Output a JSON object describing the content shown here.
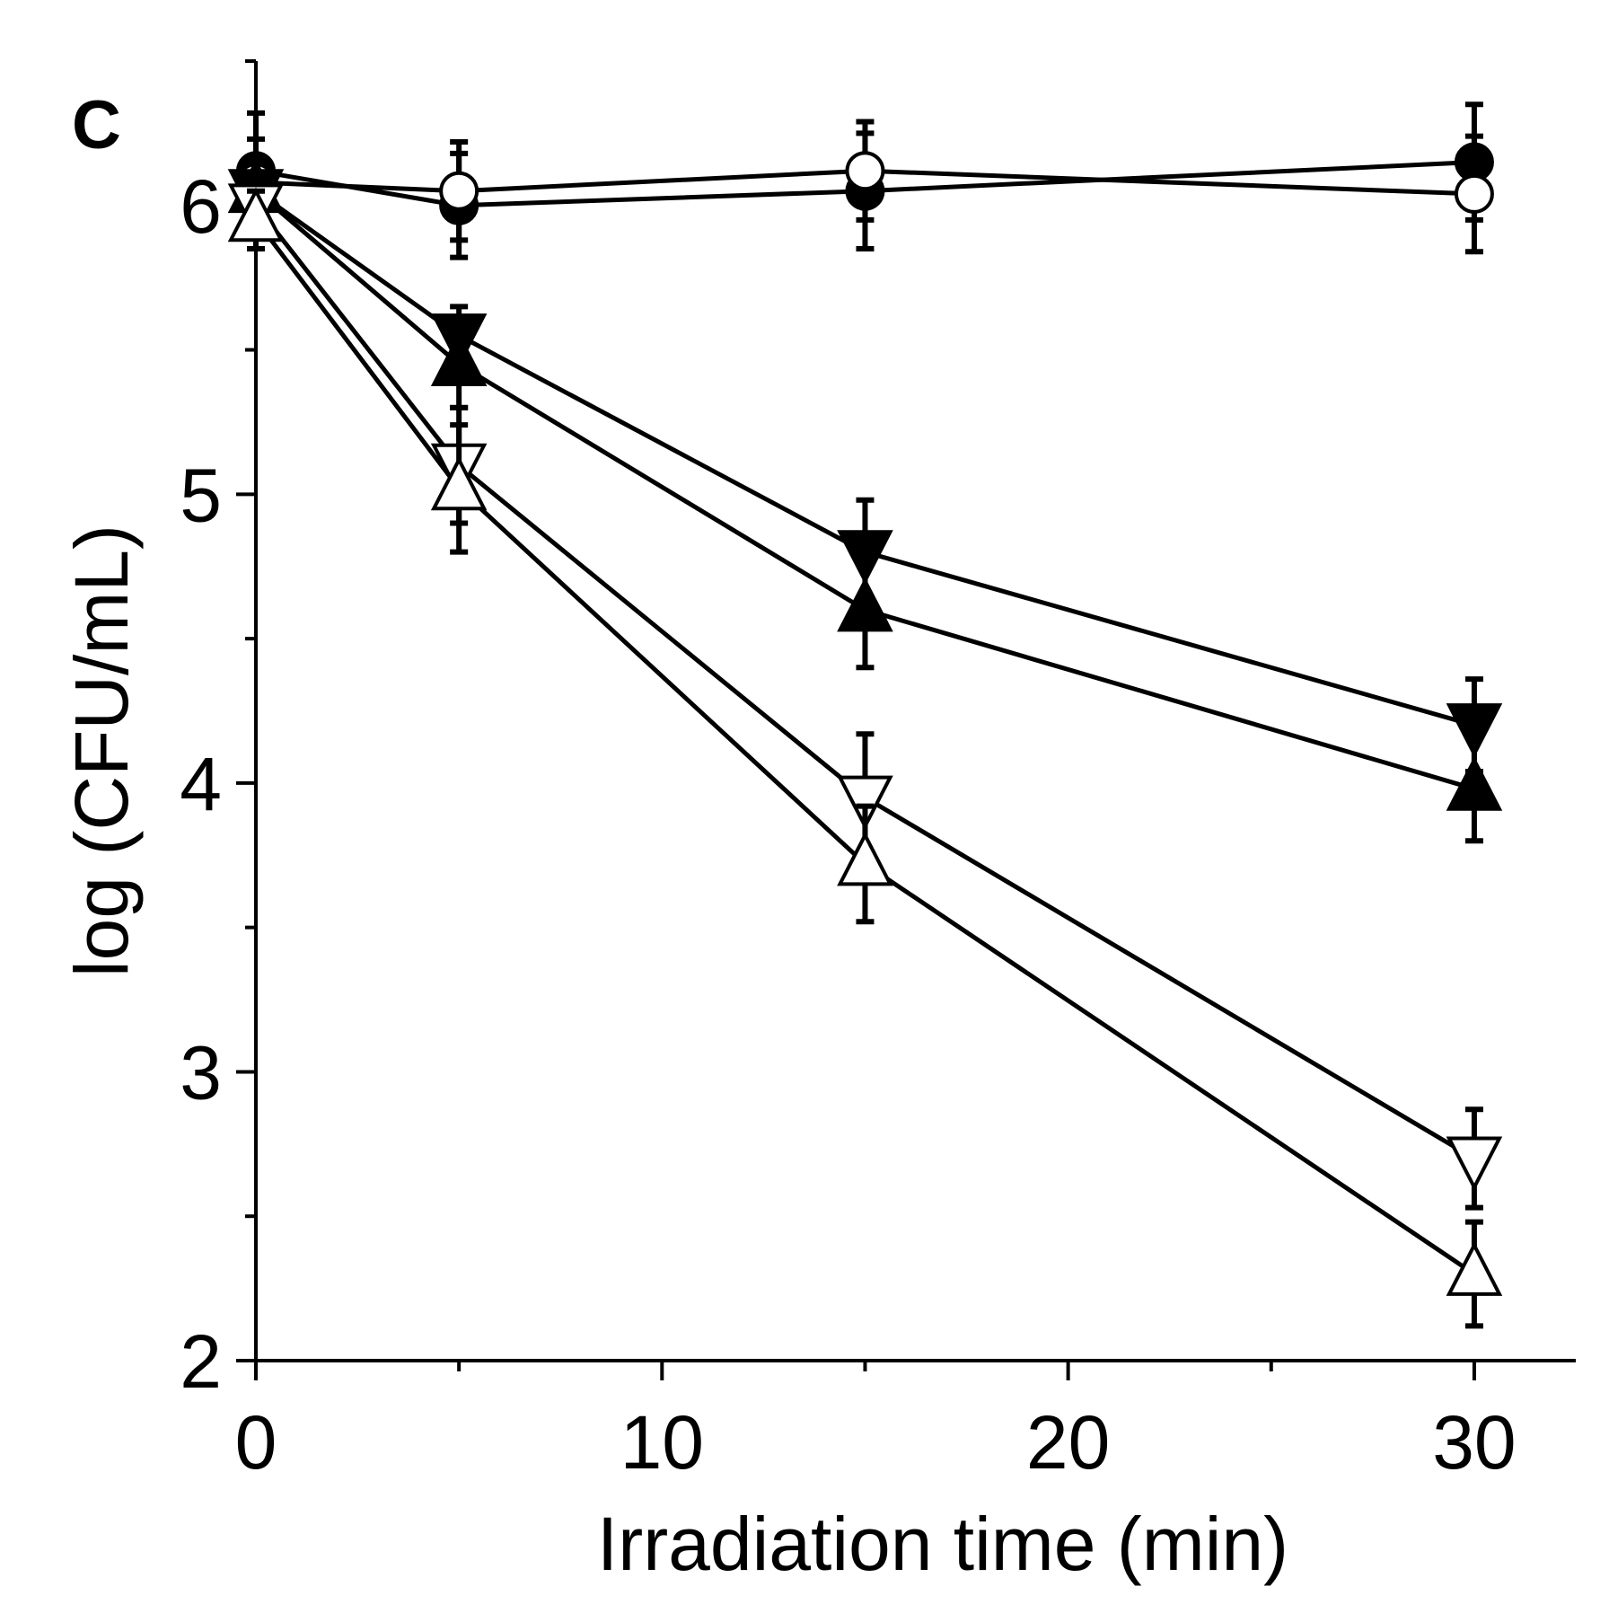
{
  "chart_data": {
    "type": "line",
    "panel_label": "C",
    "xlabel": "Irradiation time (min)",
    "ylabel": "log (CFU/mL)",
    "xlim": [
      0,
      32.5
    ],
    "ylim": [
      2,
      6.5
    ],
    "xticks": [
      0,
      10,
      20,
      30
    ],
    "xtick_labels": [
      "0",
      "10",
      "20",
      "30"
    ],
    "xminor_ticks": [
      5,
      15,
      25
    ],
    "yticks": [
      2,
      3,
      4,
      5,
      6
    ],
    "ytick_labels": [
      "2",
      "3",
      "4",
      "5",
      "6"
    ],
    "yminor_ticks": [
      2.5,
      3.5,
      4.5,
      5.5,
      6.5
    ],
    "x": [
      0,
      5,
      15,
      30
    ],
    "series": [
      {
        "name": "filled circle",
        "marker": "circle",
        "filled": true,
        "values": [
          6.12,
          6.0,
          6.05,
          6.15
        ],
        "errors": [
          0.2,
          0.18,
          0.2,
          0.2
        ]
      },
      {
        "name": "open circle",
        "marker": "circle",
        "filled": false,
        "values": [
          6.08,
          6.05,
          6.12,
          6.04
        ],
        "errors": [
          0.15,
          0.17,
          0.17,
          0.2
        ]
      },
      {
        "name": "filled down triangle",
        "marker": "triangle-down",
        "filled": true,
        "values": [
          6.05,
          5.55,
          4.8,
          4.2
        ],
        "errors": [
          0.1,
          0.1,
          0.18,
          0.16
        ]
      },
      {
        "name": "filled up triangle",
        "marker": "triangle-up",
        "filled": true,
        "values": [
          6.05,
          5.45,
          4.6,
          3.98
        ],
        "errors": [
          0.1,
          0.15,
          0.2,
          0.18
        ]
      },
      {
        "name": "open down triangle",
        "marker": "triangle-down",
        "filled": false,
        "values": [
          6.0,
          5.1,
          3.95,
          2.7
        ],
        "errors": [
          0.1,
          0.2,
          0.22,
          0.17
        ]
      },
      {
        "name": "open up triangle",
        "marker": "triangle-up",
        "filled": false,
        "values": [
          5.95,
          5.02,
          3.72,
          2.3
        ],
        "errors": [
          0.1,
          0.22,
          0.2,
          0.18
        ]
      }
    ]
  }
}
